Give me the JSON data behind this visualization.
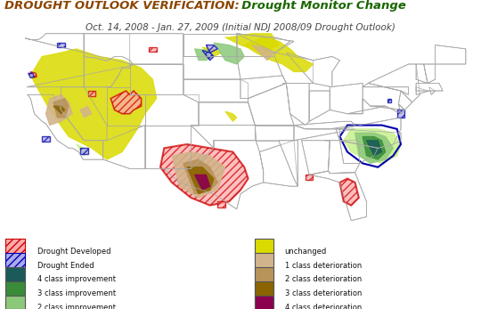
{
  "title_bold": "DROUGHT OUTLOOK VERIFICATION:",
  "title_normal": "  Drought Monitor Change",
  "subtitle": "Oct. 14, 2008 - Jan. 27, 2009 (Initial NDJ 2008/09 Drought Outlook)",
  "title_bold_color": "#8B4500",
  "title_normal_color": "#1A6600",
  "subtitle_color": "#444444",
  "background_color": "#ffffff",
  "colors": {
    "unchanged": "#DADA00",
    "improvement_1": "#C8F08C",
    "improvement_2": "#8CC87A",
    "improvement_3": "#3A8C3A",
    "improvement_4": "#1A5A5A",
    "deterioration_1": "#D2B48C",
    "deterioration_2": "#B8935A",
    "deterioration_3": "#8B6400",
    "deterioration_4": "#8B0050",
    "drought_developed_face": "#FFAAAA",
    "drought_developed_edge": "#CC0000",
    "drought_ended_face": "#AAAAEE",
    "drought_ended_edge": "#0000AA",
    "state_border": "#AAAAAA",
    "country_border": "#888888"
  },
  "map_xlim": [
    -128,
    -65
  ],
  "map_ylim": [
    23,
    50
  ]
}
